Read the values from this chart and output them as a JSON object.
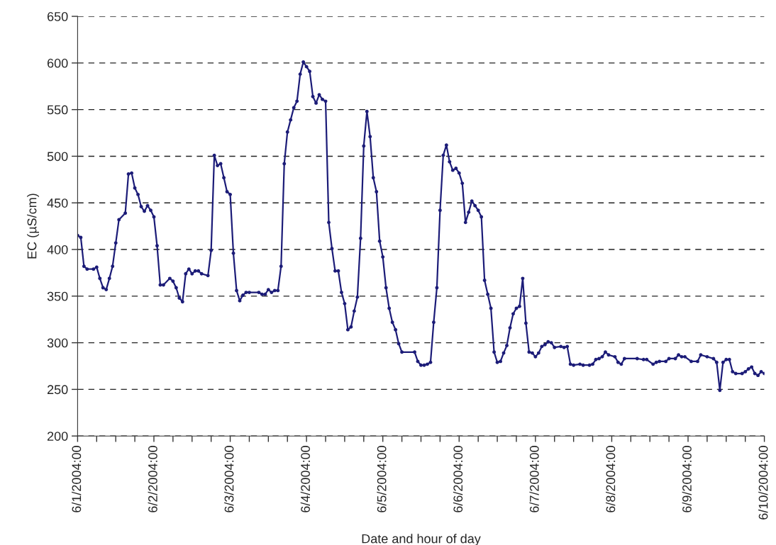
{
  "chart_data": {
    "type": "line",
    "xlabel": "Date and hour of day",
    "ylabel": "EC (µS/cm)",
    "xlim": [
      "2004-06-01T00:00",
      "2004-06-10T00:00"
    ],
    "ylim": [
      200,
      650
    ],
    "yticks": [
      200,
      250,
      300,
      350,
      400,
      450,
      500,
      550,
      600,
      650
    ],
    "xticks": [
      {
        "value": "2004-06-01T00:00",
        "label": "6/1/2004:00"
      },
      {
        "value": "2004-06-01T06:00",
        "label": null
      },
      {
        "value": "2004-06-01T12:00",
        "label": null
      },
      {
        "value": "2004-06-01T18:00",
        "label": null
      },
      {
        "value": "2004-06-02T00:00",
        "label": "6/2/2004:00"
      },
      {
        "value": "2004-06-02T06:00",
        "label": null
      },
      {
        "value": "2004-06-02T12:00",
        "label": null
      },
      {
        "value": "2004-06-02T18:00",
        "label": null
      },
      {
        "value": "2004-06-03T00:00",
        "label": "6/3/2004:00"
      },
      {
        "value": "2004-06-03T06:00",
        "label": null
      },
      {
        "value": "2004-06-03T12:00",
        "label": null
      },
      {
        "value": "2004-06-03T18:00",
        "label": null
      },
      {
        "value": "2004-06-04T00:00",
        "label": "6/4/2004:00"
      },
      {
        "value": "2004-06-04T06:00",
        "label": null
      },
      {
        "value": "2004-06-04T12:00",
        "label": null
      },
      {
        "value": "2004-06-04T18:00",
        "label": null
      },
      {
        "value": "2004-06-05T00:00",
        "label": "6/5/2004:00"
      },
      {
        "value": "2004-06-05T06:00",
        "label": null
      },
      {
        "value": "2004-06-05T12:00",
        "label": null
      },
      {
        "value": "2004-06-05T18:00",
        "label": null
      },
      {
        "value": "2004-06-06T00:00",
        "label": "6/6/2004:00"
      },
      {
        "value": "2004-06-06T06:00",
        "label": null
      },
      {
        "value": "2004-06-06T12:00",
        "label": null
      },
      {
        "value": "2004-06-06T18:00",
        "label": null
      },
      {
        "value": "2004-06-07T00:00",
        "label": "6/7/2004:00"
      },
      {
        "value": "2004-06-07T06:00",
        "label": null
      },
      {
        "value": "2004-06-07T12:00",
        "label": null
      },
      {
        "value": "2004-06-07T18:00",
        "label": null
      },
      {
        "value": "2004-06-08T00:00",
        "label": "6/8/2004:00"
      },
      {
        "value": "2004-06-08T06:00",
        "label": null
      },
      {
        "value": "2004-06-08T12:00",
        "label": null
      },
      {
        "value": "2004-06-08T18:00",
        "label": null
      },
      {
        "value": "2004-06-09T00:00",
        "label": "6/9/2004:00"
      },
      {
        "value": "2004-06-09T06:00",
        "label": null
      },
      {
        "value": "2004-06-09T12:00",
        "label": null
      },
      {
        "value": "2004-06-09T18:00",
        "label": null
      },
      {
        "value": "2004-06-10T00:00",
        "label": "6/10/2004:00"
      }
    ],
    "grid": "y",
    "marker": "circle",
    "line_style": "solid",
    "series": [
      {
        "color": "#1c1c78",
        "x": [
          "2004-06-01T00:00",
          "2004-06-01T01:00",
          "2004-06-01T02:00",
          "2004-06-01T03:00",
          "2004-06-01T05:00",
          "2004-06-01T06:00",
          "2004-06-01T07:00",
          "2004-06-01T08:00",
          "2004-06-01T09:00",
          "2004-06-01T10:00",
          "2004-06-01T11:00",
          "2004-06-01T12:00",
          "2004-06-01T13:00",
          "2004-06-01T15:00",
          "2004-06-01T16:00",
          "2004-06-01T17:00",
          "2004-06-01T18:00",
          "2004-06-01T19:00",
          "2004-06-01T20:00",
          "2004-06-01T21:00",
          "2004-06-01T22:00",
          "2004-06-01T23:00",
          "2004-06-02T00:00",
          "2004-06-02T01:00",
          "2004-06-02T02:00",
          "2004-06-02T03:00",
          "2004-06-02T05:00",
          "2004-06-02T06:00",
          "2004-06-02T07:00",
          "2004-06-02T08:00",
          "2004-06-02T09:00",
          "2004-06-02T10:00",
          "2004-06-02T11:00",
          "2004-06-02T12:00",
          "2004-06-02T13:00",
          "2004-06-02T14:00",
          "2004-06-02T15:00",
          "2004-06-02T17:00",
          "2004-06-02T18:00",
          "2004-06-02T19:00",
          "2004-06-02T20:00",
          "2004-06-02T21:00",
          "2004-06-02T22:00",
          "2004-06-02T23:00",
          "2004-06-03T00:00",
          "2004-06-03T01:00",
          "2004-06-03T02:00",
          "2004-06-03T03:00",
          "2004-06-03T04:00",
          "2004-06-03T05:00",
          "2004-06-03T06:00",
          "2004-06-03T09:00",
          "2004-06-03T10:00",
          "2004-06-03T11:00",
          "2004-06-03T12:00",
          "2004-06-03T13:00",
          "2004-06-03T14:00",
          "2004-06-03T15:00",
          "2004-06-03T16:00",
          "2004-06-03T17:00",
          "2004-06-03T18:00",
          "2004-06-03T19:00",
          "2004-06-03T20:00",
          "2004-06-03T21:00",
          "2004-06-03T22:00",
          "2004-06-03T23:00",
          "2004-06-04T00:00",
          "2004-06-04T01:00",
          "2004-06-04T02:00",
          "2004-06-04T03:00",
          "2004-06-04T04:00",
          "2004-06-04T05:00",
          "2004-06-04T06:00",
          "2004-06-04T07:00",
          "2004-06-04T08:00",
          "2004-06-04T09:00",
          "2004-06-04T10:00",
          "2004-06-04T11:00",
          "2004-06-04T12:00",
          "2004-06-04T13:00",
          "2004-06-04T14:00",
          "2004-06-04T15:00",
          "2004-06-04T16:00",
          "2004-06-04T17:00",
          "2004-06-04T18:00",
          "2004-06-04T19:00",
          "2004-06-04T20:00",
          "2004-06-04T21:00",
          "2004-06-04T22:00",
          "2004-06-04T23:00",
          "2004-06-05T00:00",
          "2004-06-05T01:00",
          "2004-06-05T02:00",
          "2004-06-05T03:00",
          "2004-06-05T04:00",
          "2004-06-05T05:00",
          "2004-06-05T06:00",
          "2004-06-05T10:00",
          "2004-06-05T11:00",
          "2004-06-05T12:00",
          "2004-06-05T13:00",
          "2004-06-05T14:00",
          "2004-06-05T15:00",
          "2004-06-05T16:00",
          "2004-06-05T17:00",
          "2004-06-05T18:00",
          "2004-06-05T19:00",
          "2004-06-05T20:00",
          "2004-06-05T21:00",
          "2004-06-05T22:00",
          "2004-06-05T23:00",
          "2004-06-06T00:00",
          "2004-06-06T01:00",
          "2004-06-06T02:00",
          "2004-06-06T03:00",
          "2004-06-06T04:00",
          "2004-06-06T05:00",
          "2004-06-06T06:00",
          "2004-06-06T07:00",
          "2004-06-06T08:00",
          "2004-06-06T09:00",
          "2004-06-06T10:00",
          "2004-06-06T11:00",
          "2004-06-06T12:00",
          "2004-06-06T13:00",
          "2004-06-06T14:00",
          "2004-06-06T15:00",
          "2004-06-06T16:00",
          "2004-06-06T17:00",
          "2004-06-06T18:00",
          "2004-06-06T19:00",
          "2004-06-06T20:00",
          "2004-06-06T21:00",
          "2004-06-06T22:00",
          "2004-06-06T23:00",
          "2004-06-07T00:00",
          "2004-06-07T01:00",
          "2004-06-07T02:00",
          "2004-06-07T03:00",
          "2004-06-07T04:00",
          "2004-06-07T05:00",
          "2004-06-07T06:00",
          "2004-06-07T08:00",
          "2004-06-07T09:00",
          "2004-06-07T10:00",
          "2004-06-07T11:00",
          "2004-06-07T12:00",
          "2004-06-07T14:00",
          "2004-06-07T15:00",
          "2004-06-07T17:00",
          "2004-06-07T18:00",
          "2004-06-07T19:00",
          "2004-06-07T20:00",
          "2004-06-07T21:00",
          "2004-06-07T22:00",
          "2004-06-07T23:00",
          "2004-06-08T01:00",
          "2004-06-08T02:00",
          "2004-06-08T03:00",
          "2004-06-08T04:00",
          "2004-06-08T08:00",
          "2004-06-08T10:00",
          "2004-06-08T11:00",
          "2004-06-08T13:00",
          "2004-06-08T14:00",
          "2004-06-08T15:00",
          "2004-06-08T17:00",
          "2004-06-08T18:00",
          "2004-06-08T20:00",
          "2004-06-08T21:00",
          "2004-06-08T22:00",
          "2004-06-08T23:00",
          "2004-06-09T01:00",
          "2004-06-09T03:00",
          "2004-06-09T04:00",
          "2004-06-09T06:00",
          "2004-06-09T08:00",
          "2004-06-09T09:00",
          "2004-06-09T10:00",
          "2004-06-09T11:00",
          "2004-06-09T12:00",
          "2004-06-09T13:00",
          "2004-06-09T14:00",
          "2004-06-09T15:00",
          "2004-06-09T17:00",
          "2004-06-09T18:00",
          "2004-06-09T19:00",
          "2004-06-09T20:00",
          "2004-06-09T21:00",
          "2004-06-09T22:00",
          "2004-06-09T23:00",
          "2004-06-10T00:00"
        ],
        "values": [
          415,
          413,
          382,
          379,
          379,
          381,
          369,
          359,
          357,
          369,
          382,
          407,
          432,
          439,
          481,
          482,
          466,
          459,
          446,
          441,
          447,
          442,
          435,
          404,
          362,
          362,
          369,
          366,
          359,
          348,
          344,
          374,
          379,
          374,
          377,
          377,
          374,
          372,
          399,
          501,
          490,
          492,
          477,
          462,
          459,
          396,
          356,
          345,
          351,
          354,
          354,
          354,
          352,
          352,
          357,
          354,
          356,
          356,
          382,
          492,
          526,
          539,
          552,
          559,
          588,
          601,
          596,
          591,
          564,
          557,
          566,
          561,
          559,
          429,
          401,
          377,
          377,
          354,
          342,
          314,
          317,
          334,
          349,
          412,
          511,
          548,
          521,
          477,
          462,
          409,
          392,
          359,
          337,
          322,
          314,
          299,
          290,
          290,
          280,
          276,
          276,
          277,
          279,
          322,
          359,
          442,
          501,
          512,
          494,
          485,
          487,
          482,
          471,
          429,
          440,
          452,
          447,
          442,
          435,
          367,
          352,
          337,
          290,
          279,
          280,
          289,
          297,
          316,
          331,
          337,
          339,
          369,
          321,
          290,
          289,
          285,
          289,
          296,
          298,
          301,
          300,
          295,
          296,
          295,
          296,
          277,
          276,
          277,
          276,
          276,
          277,
          282,
          283,
          285,
          290,
          287,
          285,
          279,
          277,
          283,
          283,
          282,
          282,
          277,
          279,
          280,
          280,
          283,
          283,
          287,
          285,
          285,
          280,
          280,
          287,
          285,
          283,
          279,
          249,
          279,
          282,
          282,
          269,
          267,
          267,
          269,
          272,
          274,
          267,
          265,
          269,
          267
        ]
      }
    ]
  }
}
